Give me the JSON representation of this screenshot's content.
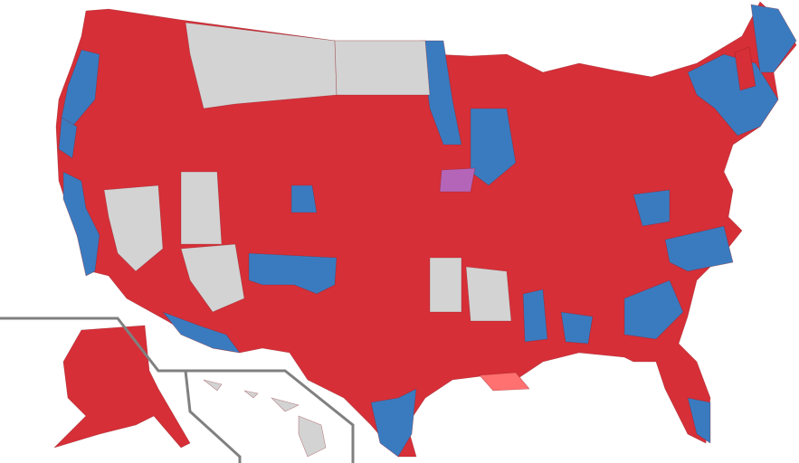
{
  "map": {
    "colors": {
      "republican": "#d62f38",
      "democratic": "#3a7bc0",
      "no_election": "#d3d3d3",
      "republican_lean": "#ff7070",
      "split": "#b565b8",
      "inset_border": "#808080"
    },
    "regions": [
      {
        "id": "mainland",
        "party": "republican"
      },
      {
        "id": "alaska",
        "party": "republican"
      },
      {
        "id": "hawaii",
        "party": "no_election"
      },
      {
        "id": "washington-west",
        "party": "democratic"
      },
      {
        "id": "oregon-coast",
        "party": "democratic"
      },
      {
        "id": "california-coast",
        "party": "democratic"
      },
      {
        "id": "new-mexico",
        "party": "democratic"
      },
      {
        "id": "arizona-south",
        "party": "democratic"
      },
      {
        "id": "minnesota-west",
        "party": "democratic"
      },
      {
        "id": "wisconsin-south",
        "party": "democratic"
      },
      {
        "id": "iowa-central",
        "party": "split"
      },
      {
        "id": "new-england",
        "party": "democratic"
      },
      {
        "id": "maine",
        "party": "democratic"
      },
      {
        "id": "new-hampshire",
        "party": "republican"
      },
      {
        "id": "louisiana-coast",
        "party": "republican_lean"
      },
      {
        "id": "mississippi-delta",
        "party": "democratic"
      },
      {
        "id": "alabama-black-belt",
        "party": "democratic"
      },
      {
        "id": "georgia",
        "party": "democratic"
      },
      {
        "id": "north-carolina",
        "party": "democratic"
      },
      {
        "id": "virginia",
        "party": "democratic"
      },
      {
        "id": "texas-south",
        "party": "democratic"
      },
      {
        "id": "colorado-denver",
        "party": "democratic"
      },
      {
        "id": "florida-south",
        "party": "democratic"
      },
      {
        "id": "montana",
        "party": "no_election"
      },
      {
        "id": "north-dakota",
        "party": "no_election"
      },
      {
        "id": "nevada",
        "party": "no_election"
      },
      {
        "id": "utah",
        "party": "no_election"
      },
      {
        "id": "arizona-north",
        "party": "no_election"
      },
      {
        "id": "oklahoma-east",
        "party": "no_election"
      },
      {
        "id": "arkansas",
        "party": "no_election"
      }
    ]
  }
}
